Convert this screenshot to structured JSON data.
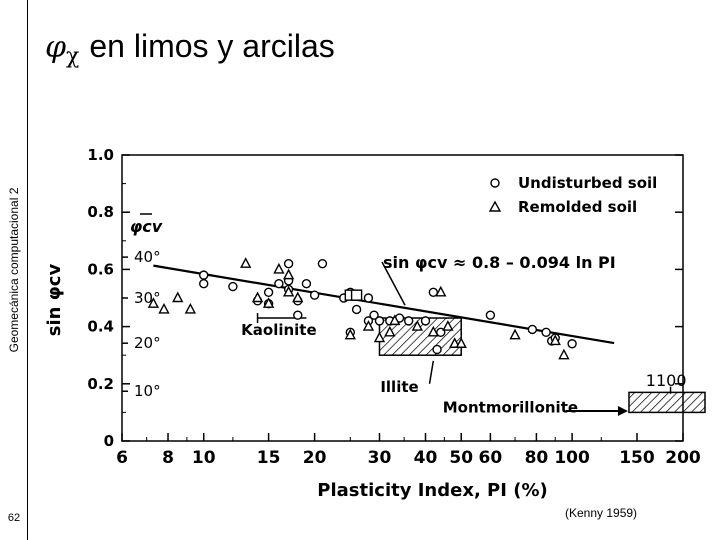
{
  "slide": {
    "title_symbol": "φ",
    "title_subscript": "χ",
    "title_text": "en limos y arcilas",
    "sidebar_title": "Geomecánica computacional 2",
    "page_number": "62",
    "citation": "(Kenny 1959)"
  },
  "chart_data": {
    "type": "scatter",
    "xlabel": "Plasticity Index, PI (%)",
    "ylabel": "sin φcv",
    "x_scale": "log",
    "xlim": [
      6,
      200
    ],
    "ylim": [
      0,
      1.0
    ],
    "x_ticks": [
      6,
      8,
      10,
      15,
      20,
      30,
      40,
      50,
      60,
      80,
      100,
      150,
      200
    ],
    "y_ticks": [
      0,
      0.2,
      0.4,
      0.6,
      0.8,
      1.0
    ],
    "phi_ticks": [
      {
        "label": "10°",
        "value": 0.174
      },
      {
        "label": "20°",
        "value": 0.342
      },
      {
        "label": "30°",
        "value": 0.5
      },
      {
        "label": "40°",
        "value": 0.643
      }
    ],
    "phi_axis_label": "φcv",
    "legend": {
      "placement": "top-right",
      "items": [
        {
          "marker": "circle",
          "label": "Undisturbed soil"
        },
        {
          "marker": "triangle",
          "label": "Remolded soil"
        }
      ]
    },
    "series": [
      {
        "name": "Undisturbed soil",
        "marker": "circle",
        "points": [
          [
            10,
            0.58
          ],
          [
            10,
            0.55
          ],
          [
            12,
            0.54
          ],
          [
            14,
            0.49
          ],
          [
            15,
            0.52
          ],
          [
            15,
            0.48
          ],
          [
            16,
            0.55
          ],
          [
            17,
            0.62
          ],
          [
            17,
            0.56
          ],
          [
            17,
            0.53
          ],
          [
            18,
            0.49
          ],
          [
            18,
            0.44
          ],
          [
            19,
            0.55
          ],
          [
            20,
            0.51
          ],
          [
            21,
            0.62
          ],
          [
            24,
            0.5
          ],
          [
            25,
            0.52
          ],
          [
            25,
            0.38
          ],
          [
            26,
            0.46
          ],
          [
            28,
            0.5
          ],
          [
            28,
            0.42
          ],
          [
            29,
            0.44
          ],
          [
            30,
            0.42
          ],
          [
            32,
            0.42
          ],
          [
            34,
            0.43
          ],
          [
            36,
            0.42
          ],
          [
            40,
            0.42
          ],
          [
            42,
            0.52
          ],
          [
            43,
            0.32
          ],
          [
            44,
            0.38
          ],
          [
            60,
            0.44
          ],
          [
            78,
            0.39
          ],
          [
            85,
            0.38
          ],
          [
            88,
            0.35
          ],
          [
            90,
            0.36
          ],
          [
            100,
            0.34
          ]
        ]
      },
      {
        "name": "Remolded soil",
        "marker": "triangle",
        "points": [
          [
            7.3,
            0.48
          ],
          [
            7.8,
            0.46
          ],
          [
            8.5,
            0.5
          ],
          [
            9.2,
            0.46
          ],
          [
            13,
            0.62
          ],
          [
            14,
            0.5
          ],
          [
            15,
            0.48
          ],
          [
            16,
            0.6
          ],
          [
            17,
            0.58
          ],
          [
            17,
            0.52
          ],
          [
            18,
            0.5
          ],
          [
            25,
            0.37
          ],
          [
            28,
            0.4
          ],
          [
            30,
            0.36
          ],
          [
            32,
            0.38
          ],
          [
            33,
            0.42
          ],
          [
            38,
            0.4
          ],
          [
            42,
            0.38
          ],
          [
            44,
            0.52
          ],
          [
            46,
            0.4
          ],
          [
            48,
            0.34
          ],
          [
            50,
            0.34
          ],
          [
            70,
            0.37
          ],
          [
            90,
            0.35
          ],
          [
            95,
            0.3
          ]
        ]
      }
    ],
    "squares": [
      [
        25,
        0.51
      ],
      [
        26,
        0.51
      ]
    ],
    "trend_line": {
      "label": "sin φcv ≈ 0.8 – 0.094 ln PI",
      "intercept": 0.8,
      "slope": -0.094,
      "x_range": [
        7.3,
        130
      ]
    },
    "regions": [
      {
        "name": "Kaolinite",
        "label": "Kaolinite",
        "x_range": [
          14,
          19
        ],
        "y": 0.43
      },
      {
        "name": "Illite",
        "label": "Illite",
        "x_range": [
          30,
          50
        ],
        "y_range": [
          0.3,
          0.43
        ]
      },
      {
        "name": "Montmorillonite",
        "label": "Montmorillonite",
        "x_range": [
          150,
          200
        ],
        "y_range": [
          0.1,
          0.17
        ],
        "value_label": "1100"
      }
    ]
  }
}
